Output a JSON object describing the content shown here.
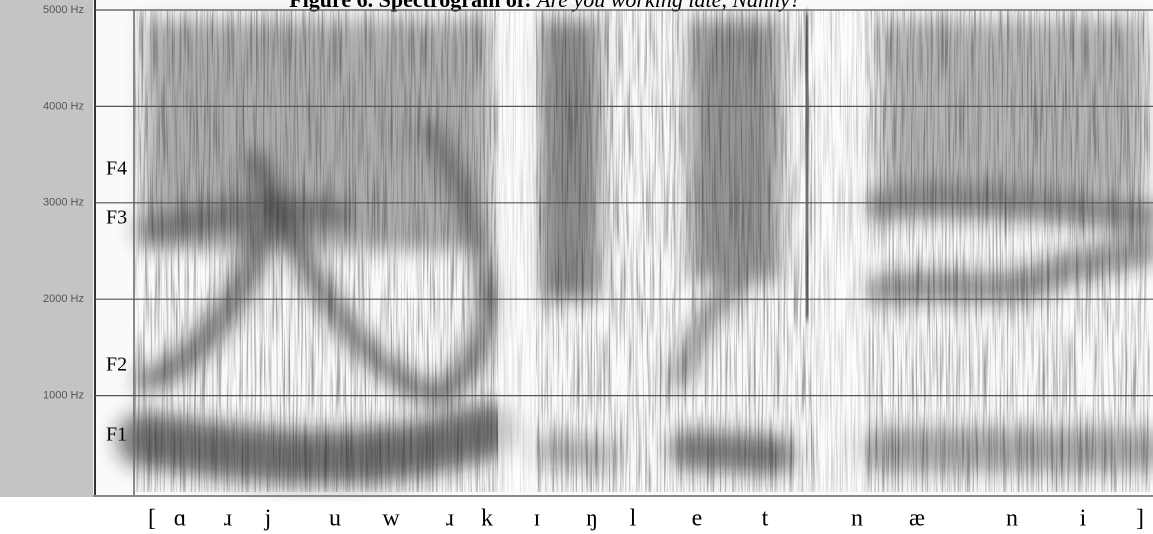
{
  "chart_data": {
    "type": "spectrogram",
    "title": "Figure 6. Spectrogram of:",
    "title_italic": "Are you working late, Nanny?",
    "ylim": [
      0,
      5000
    ],
    "yticks": [
      {
        "value": 1000,
        "label": "1000 Hz"
      },
      {
        "value": 2000,
        "label": "2000 Hz"
      },
      {
        "value": 3000,
        "label": "3000 Hz"
      },
      {
        "value": 4000,
        "label": "4000 Hz"
      },
      {
        "value": 5000,
        "label": "5000 Hz"
      }
    ],
    "grid": true,
    "formant_labels": [
      "F4",
      "F3",
      "F2",
      "F1"
    ],
    "transcription": [
      "[",
      "ɑ",
      "ɹ",
      "j",
      "u",
      "w",
      "ɹ",
      "k",
      "ɪ",
      "ŋ",
      "l",
      "e",
      "t",
      "n",
      "æ",
      "n",
      "i",
      "]"
    ]
  }
}
